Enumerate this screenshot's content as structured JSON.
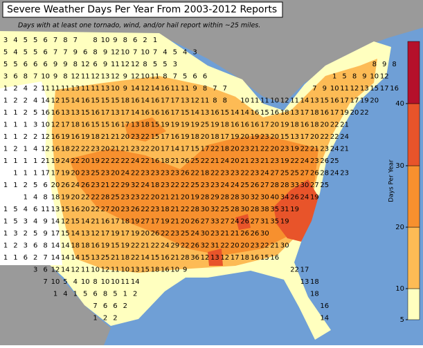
{
  "header": {
    "title": "Severe Weather Days Per Year From 2003-2012 Reports",
    "subtitle": "Days with at least one tornado, wind, and/or hail report within ~25 miles."
  },
  "colorbar": {
    "label": "Days Per Year",
    "ticks": [
      5,
      10,
      20,
      30,
      40
    ],
    "colors": [
      "#ffffbf",
      "#fdbb55",
      "#f7902e",
      "#e8542a",
      "#b5102a"
    ]
  },
  "grid_labels": [
    [
      3,
      4,
      5,
      5,
      6,
      7,
      8,
      7,
      null,
      8,
      10,
      9,
      8,
      6,
      2,
      1
    ],
    [
      5,
      4,
      5,
      5,
      6,
      7,
      7,
      9,
      6,
      8,
      9,
      12,
      10,
      7,
      10,
      7,
      4,
      5,
      4,
      3
    ],
    [
      5,
      5,
      6,
      6,
      6,
      9,
      9,
      8,
      12,
      6,
      9,
      11,
      12,
      12,
      8,
      5,
      5,
      3,
      null,
      null,
      null,
      null,
      null,
      null,
      null,
      null,
      null,
      null,
      null,
      null,
      null,
      null,
      null,
      null,
      null,
      null,
      null,
      8,
      9,
      8
    ],
    [
      3,
      6,
      8,
      7,
      10,
      9,
      8,
      12,
      11,
      12,
      13,
      12,
      9,
      12,
      10,
      11,
      8,
      7,
      5,
      6,
      6,
      null,
      null,
      null,
      null,
      null,
      null,
      null,
      null,
      null,
      null,
      null,
      null,
      1,
      5,
      8,
      9,
      10,
      12
    ],
    [
      1,
      2,
      4,
      2,
      11,
      11,
      11,
      13,
      11,
      11,
      13,
      10,
      9,
      14,
      12,
      14,
      16,
      11,
      11,
      9,
      8,
      7,
      7,
      null,
      null,
      null,
      null,
      null,
      null,
      null,
      null,
      7,
      9,
      10,
      11,
      12,
      13,
      15,
      17,
      16
    ],
    [
      1,
      2,
      2,
      4,
      14,
      12,
      15,
      14,
      16,
      15,
      15,
      15,
      18,
      16,
      14,
      16,
      17,
      17,
      13,
      12,
      11,
      8,
      8,
      null,
      10,
      11,
      11,
      10,
      12,
      11,
      14,
      13,
      15,
      16,
      17,
      17,
      19,
      20
    ],
    [
      1,
      1,
      2,
      5,
      16,
      16,
      13,
      13,
      15,
      16,
      17,
      13,
      17,
      14,
      16,
      16,
      16,
      17,
      15,
      14,
      13,
      16,
      15,
      14,
      14,
      16,
      15,
      16,
      18,
      13,
      17,
      18,
      16,
      17,
      19,
      20,
      22
    ],
    [
      1,
      1,
      1,
      3,
      10,
      12,
      17,
      18,
      16,
      15,
      15,
      16,
      17,
      13,
      18,
      15,
      19,
      19,
      19,
      19,
      25,
      19,
      18,
      16,
      16,
      16,
      17,
      20,
      19,
      18,
      16,
      18,
      20,
      22,
      21
    ],
    [
      1,
      1,
      2,
      2,
      12,
      16,
      19,
      16,
      19,
      18,
      21,
      21,
      20,
      23,
      22,
      15,
      17,
      16,
      19,
      18,
      20,
      18,
      17,
      19,
      20,
      19,
      23,
      20,
      15,
      13,
      17,
      20,
      22,
      22,
      24
    ],
    [
      1,
      2,
      1,
      4,
      12,
      16,
      18,
      22,
      22,
      23,
      20,
      21,
      21,
      23,
      22,
      20,
      17,
      14,
      17,
      15,
      17,
      22,
      18,
      20,
      23,
      21,
      22,
      20,
      23,
      19,
      22,
      21,
      23,
      24,
      21
    ],
    [
      1,
      1,
      1,
      1,
      21,
      19,
      24,
      22,
      20,
      19,
      22,
      22,
      22,
      24,
      22,
      16,
      18,
      21,
      26,
      25,
      22,
      21,
      24,
      20,
      21,
      23,
      21,
      23,
      19,
      22,
      24,
      23,
      26,
      25
    ],
    [
      null,
      1,
      1,
      1,
      17,
      17,
      19,
      20,
      23,
      25,
      23,
      20,
      24,
      22,
      23,
      23,
      23,
      23,
      26,
      22,
      18,
      22,
      23,
      23,
      22,
      23,
      24,
      27,
      25,
      25,
      27,
      26,
      28,
      24,
      23
    ],
    [
      1,
      1,
      2,
      5,
      6,
      20,
      26,
      24,
      26,
      23,
      21,
      22,
      29,
      32,
      24,
      18,
      23,
      22,
      22,
      25,
      23,
      23,
      24,
      24,
      25,
      26,
      27,
      28,
      28,
      33,
      30,
      27,
      25
    ],
    [
      null,
      null,
      1,
      4,
      8,
      18,
      19,
      20,
      22,
      22,
      28,
      25,
      23,
      23,
      22,
      20,
      21,
      21,
      20,
      19,
      28,
      29,
      28,
      28,
      30,
      32,
      30,
      40,
      34,
      26,
      24,
      19
    ],
    [
      1,
      5,
      4,
      6,
      11,
      13,
      15,
      16,
      20,
      22,
      27,
      20,
      23,
      26,
      22,
      23,
      18,
      21,
      22,
      28,
      30,
      32,
      25,
      28,
      30,
      28,
      38,
      35,
      31,
      19
    ],
    [
      1,
      5,
      3,
      4,
      9,
      14,
      12,
      15,
      14,
      21,
      16,
      17,
      18,
      19,
      27,
      17,
      19,
      21,
      20,
      26,
      27,
      33,
      27,
      24,
      26,
      27,
      31,
      35,
      19
    ],
    [
      1,
      3,
      2,
      5,
      9,
      17,
      15,
      14,
      13,
      12,
      17,
      19,
      17,
      19,
      20,
      26,
      22,
      23,
      25,
      24,
      30,
      23,
      21,
      21,
      26,
      26,
      30
    ],
    [
      1,
      2,
      3,
      6,
      8,
      14,
      14,
      18,
      18,
      16,
      19,
      15,
      19,
      22,
      21,
      22,
      24,
      29,
      22,
      26,
      32,
      31,
      22,
      20,
      20,
      23,
      22,
      21,
      30
    ],
    [
      1,
      1,
      6,
      2,
      7,
      14,
      14,
      14,
      15,
      13,
      25,
      21,
      18,
      22,
      14,
      15,
      16,
      21,
      28,
      36,
      12,
      13,
      12,
      17,
      18,
      16,
      15,
      16
    ],
    [
      null,
      null,
      null,
      3,
      6,
      12,
      14,
      12,
      11,
      10,
      12,
      11,
      10,
      13,
      15,
      18,
      16,
      10,
      9,
      null,
      null,
      null,
      null,
      null,
      null,
      null,
      null,
      null,
      null,
      22,
      17
    ],
    [
      null,
      null,
      null,
      null,
      7,
      10,
      5,
      4,
      10,
      8,
      10,
      10,
      11,
      14,
      null,
      null,
      null,
      null,
      null,
      null,
      null,
      null,
      null,
      null,
      null,
      null,
      null,
      null,
      null,
      null,
      13,
      18
    ],
    [
      null,
      null,
      null,
      null,
      null,
      1,
      4,
      1,
      5,
      6,
      8,
      5,
      1,
      2,
      null,
      null,
      null,
      null,
      null,
      null,
      null,
      null,
      null,
      null,
      null,
      null,
      null,
      null,
      null,
      null,
      null,
      18
    ],
    [
      null,
      null,
      null,
      null,
      null,
      null,
      null,
      null,
      null,
      7,
      6,
      6,
      2,
      null,
      null,
      null,
      null,
      null,
      null,
      null,
      null,
      null,
      null,
      null,
      null,
      null,
      null,
      null,
      null,
      null,
      null,
      null,
      16
    ],
    [
      null,
      null,
      null,
      null,
      null,
      null,
      null,
      null,
      null,
      1,
      2,
      2,
      null,
      null,
      null,
      null,
      null,
      null,
      null,
      null,
      null,
      null,
      null,
      null,
      null,
      null,
      null,
      null,
      null,
      null,
      null,
      null,
      14
    ]
  ]
}
